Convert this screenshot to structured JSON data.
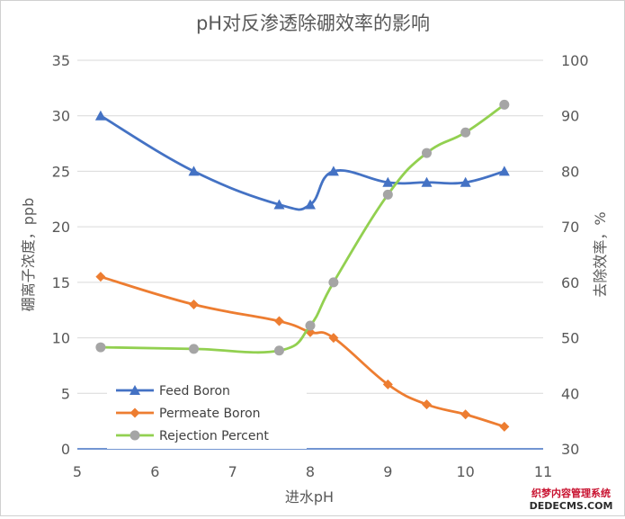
{
  "chart_data": {
    "type": "line",
    "title": "pH对反渗透除硼效率的影响",
    "xlabel": "进水pH",
    "ylabel": "硼离子浓度，ppb",
    "y2label": "去除效率，%",
    "xlim": [
      5,
      11
    ],
    "ylim": [
      0,
      35
    ],
    "y2lim": [
      30,
      100
    ],
    "xticks": [
      "5",
      "6",
      "7",
      "8",
      "9",
      "10",
      "11"
    ],
    "yticks": [
      "0",
      "5",
      "10",
      "15",
      "20",
      "25",
      "30",
      "35"
    ],
    "y2ticks": [
      "30",
      "40",
      "50",
      "60",
      "70",
      "80",
      "90",
      "100"
    ],
    "grid": "horizontal",
    "legend_position": "bottom-left",
    "series": [
      {
        "name": "Feed Boron",
        "axis": "left",
        "color": "#4472C4",
        "marker": "triangle",
        "x": [
          5.3,
          6.5,
          7.6,
          8.0,
          8.3,
          9.0,
          9.5,
          10.0,
          10.5
        ],
        "values": [
          30,
          25,
          22,
          22,
          25,
          24,
          24,
          24,
          25
        ]
      },
      {
        "name": "Permeate Boron",
        "axis": "left",
        "color": "#ED7D31",
        "marker": "diamond",
        "x": [
          5.3,
          6.5,
          7.6,
          8.0,
          8.3,
          9.0,
          9.5,
          10.0,
          10.5
        ],
        "values": [
          15.5,
          13,
          11.5,
          10.5,
          10,
          5.8,
          4,
          3.1,
          2
        ]
      },
      {
        "name": "Rejection Percent",
        "axis": "right",
        "color": "#92D050",
        "marker": "circle",
        "x": [
          5.3,
          6.5,
          7.6,
          8.0,
          8.3,
          9.0,
          9.5,
          10.0,
          10.5
        ],
        "values": [
          48.3,
          48,
          47.7,
          52.2,
          60,
          75.8,
          83.3,
          87,
          92
        ]
      }
    ]
  },
  "watermark": {
    "line1": "织梦内容管理系统",
    "line2": "DEDECMS.COM"
  }
}
